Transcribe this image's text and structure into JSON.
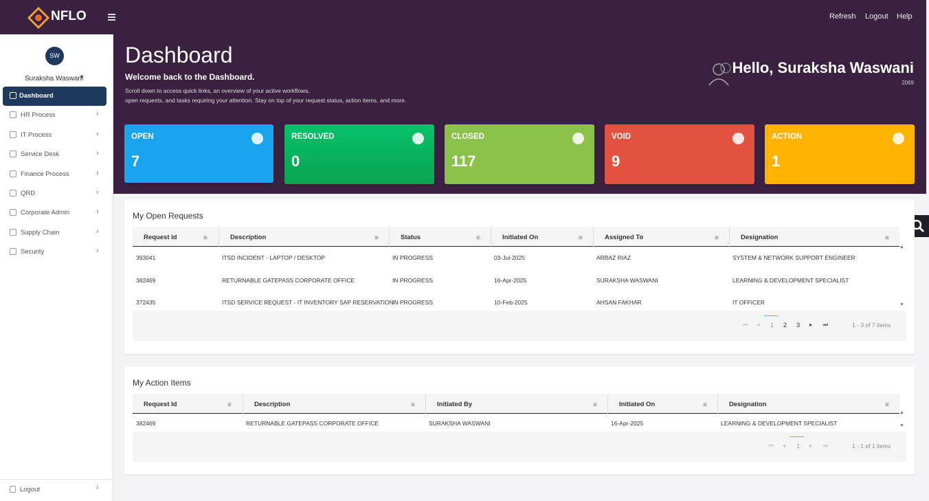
{
  "header": {
    "logo": "NFLO",
    "links": [
      "Refresh",
      "Logout",
      "Help"
    ]
  },
  "sidebar": {
    "initials": "SW",
    "user": "Suraksha Waswani",
    "menu": [
      "Dashboard",
      "HR Process",
      "IT Process",
      "Service Desk",
      "Finance Process",
      "QRD",
      "Corporate Admin",
      "Supply Chain",
      "Security"
    ],
    "logout": "Logout"
  },
  "hero": {
    "title": "Dashboard",
    "welcome": "Welcome back to the Dashboard.",
    "desc_lines": [
      "Scroll down to access quick links, an overview of your active workflows,",
      "open requests, and tasks requiring your attention. Stay on top of your request status, action items, and more."
    ],
    "greeting": "Hello, Suraksha Waswani",
    "user_id": "2069"
  },
  "cards": [
    {
      "label": "OPEN",
      "value": "7"
    },
    {
      "label": "RESOLVED",
      "value": "0"
    },
    {
      "label": "CLOSED",
      "value": "117"
    },
    {
      "label": "VOID",
      "value": "9"
    },
    {
      "label": "ACTION",
      "value": "1"
    }
  ],
  "open_requests": {
    "title": "My Open Requests",
    "columns": [
      "Request Id",
      "Description",
      "Status",
      "Initiated On",
      "Assigned To",
      "Designation"
    ],
    "rows": [
      [
        "393041",
        "ITSD INCIDENT - LAPTOP / DESKTOP",
        "IN PROGRESS",
        "03-Jul-2025",
        "ARBAZ RIAZ",
        "SYSTEM & NETWORK SUPPORT ENGINEER"
      ],
      [
        "382469",
        "RETURNABLE GATEPASS CORPORATE OFFICE",
        "IN PROGRESS",
        "16-Apr-2025",
        "SURAKSHA WASWANI",
        "LEARNING & DEVELOPMENT SPECIALIST"
      ],
      [
        "372435",
        "ITSD SERVICE REQUEST - IT INVENTORY SAP RESERVATION",
        "IN PROGRESS",
        "10-Feb-2025",
        "AHSAN FAKHAR",
        "IT OFFICER"
      ]
    ],
    "pages": [
      "1",
      "2",
      "3"
    ],
    "summary": "1 - 3 of 7 items"
  },
  "action_items": {
    "title": "My Action Items",
    "columns": [
      "Request Id",
      "Description",
      "Initiated By",
      "Initiated On",
      "Designation"
    ],
    "rows": [
      [
        "382469",
        "RETURNABLE GATEPASS CORPORATE OFFICE",
        "SURAKSHA WASWANI",
        "16-Apr-2025",
        "LEARNING & DEVELOPMENT SPECIALIST"
      ]
    ],
    "pages": [
      "1"
    ],
    "summary": "1 - 1 of 1 items"
  }
}
